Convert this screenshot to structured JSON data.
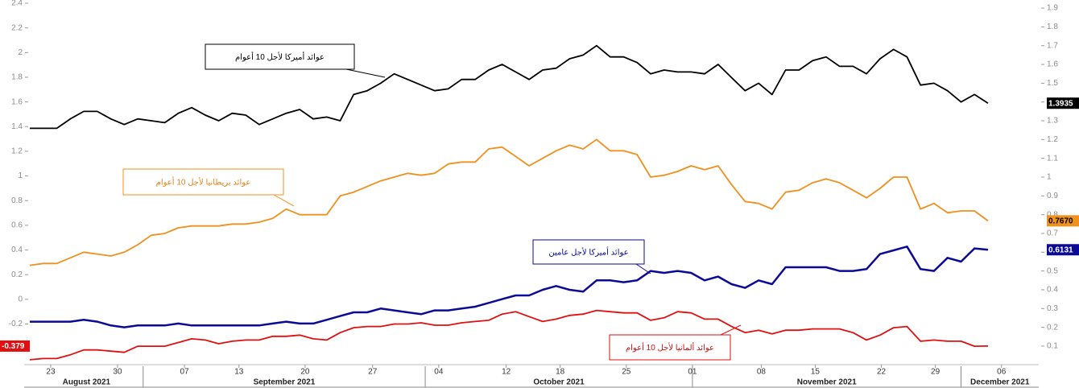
{
  "chart_data": {
    "type": "line",
    "x": [
      -1,
      0,
      1,
      2,
      3,
      4,
      5,
      6,
      7,
      8,
      9,
      10,
      11,
      12,
      13,
      14,
      15,
      16,
      17,
      18,
      19,
      20,
      21,
      22,
      23,
      24,
      25,
      26,
      27,
      28,
      29,
      30,
      31,
      32,
      33,
      34,
      35,
      36,
      37,
      38,
      39,
      40,
      41,
      42,
      43,
      44,
      45,
      46,
      47,
      48,
      49,
      50,
      51,
      52,
      53,
      54,
      55,
      56,
      57,
      58,
      59,
      60,
      61,
      62,
      63,
      64,
      65,
      66,
      67,
      68,
      69,
      70
    ],
    "series": [
      {
        "name": "عوائد أميركا لأجل 10 أعوام",
        "color": "#000000",
        "axis": "y2",
        "end_label": "1.3935",
        "values": [
          1.26,
          1.26,
          1.26,
          1.31,
          1.35,
          1.35,
          1.31,
          1.28,
          1.31,
          1.3,
          1.29,
          1.34,
          1.37,
          1.33,
          1.3,
          1.34,
          1.33,
          1.28,
          1.31,
          1.34,
          1.36,
          1.31,
          1.32,
          1.3,
          1.44,
          1.46,
          1.5,
          1.55,
          1.52,
          1.49,
          1.46,
          1.47,
          1.52,
          1.52,
          1.57,
          1.6,
          1.56,
          1.52,
          1.57,
          1.58,
          1.63,
          1.65,
          1.7,
          1.64,
          1.64,
          1.61,
          1.55,
          1.57,
          1.56,
          1.56,
          1.55,
          1.6,
          1.53,
          1.46,
          1.5,
          1.44,
          1.57,
          1.57,
          1.62,
          1.64,
          1.59,
          1.59,
          1.55,
          1.63,
          1.68,
          1.64,
          1.49,
          1.5,
          1.46,
          1.4,
          1.44,
          1.3935
        ]
      },
      {
        "name": "عوائد بريطانيا لأجل 10 أعوام",
        "color": "#f0901e",
        "axis": "y2",
        "end_label": "0.7670",
        "values": [
          0.53,
          0.54,
          0.54,
          0.57,
          0.6,
          0.59,
          0.58,
          0.6,
          0.64,
          0.69,
          0.7,
          0.73,
          0.74,
          0.74,
          0.74,
          0.75,
          0.75,
          0.76,
          0.78,
          0.83,
          0.8,
          0.8,
          0.8,
          0.9,
          0.92,
          0.95,
          0.98,
          1.0,
          1.02,
          1.01,
          1.02,
          1.07,
          1.08,
          1.08,
          1.15,
          1.16,
          1.11,
          1.06,
          1.1,
          1.14,
          1.17,
          1.15,
          1.2,
          1.14,
          1.14,
          1.12,
          1.0,
          1.01,
          1.03,
          1.06,
          1.04,
          1.06,
          0.96,
          0.87,
          0.86,
          0.83,
          0.92,
          0.93,
          0.97,
          0.99,
          0.97,
          0.93,
          0.89,
          0.94,
          1.0,
          1.0,
          0.83,
          0.86,
          0.81,
          0.82,
          0.82,
          0.767
        ]
      },
      {
        "name": "عوائد أميركا لأجل عامين",
        "color": "#0a0a96",
        "axis": "y2",
        "end_label": "0.6131",
        "values": [
          0.23,
          0.23,
          0.23,
          0.23,
          0.24,
          0.23,
          0.21,
          0.2,
          0.21,
          0.21,
          0.21,
          0.22,
          0.21,
          0.21,
          0.21,
          0.21,
          0.21,
          0.21,
          0.22,
          0.23,
          0.22,
          0.22,
          0.24,
          0.26,
          0.28,
          0.28,
          0.3,
          0.29,
          0.28,
          0.27,
          0.29,
          0.29,
          0.3,
          0.31,
          0.33,
          0.35,
          0.37,
          0.37,
          0.4,
          0.42,
          0.4,
          0.39,
          0.45,
          0.45,
          0.44,
          0.45,
          0.5,
          0.49,
          0.5,
          0.49,
          0.45,
          0.47,
          0.43,
          0.41,
          0.45,
          0.43,
          0.52,
          0.52,
          0.52,
          0.52,
          0.5,
          0.5,
          0.51,
          0.59,
          0.61,
          0.63,
          0.51,
          0.5,
          0.57,
          0.55,
          0.62,
          0.6131
        ]
      },
      {
        "name": "عوائد ألمانيا لأجل 10 أعوام",
        "color": "#e01010",
        "axis": "y",
        "end_label": "-0.379",
        "values": [
          -0.49,
          -0.48,
          -0.48,
          -0.45,
          -0.41,
          -0.41,
          -0.42,
          -0.43,
          -0.38,
          -0.38,
          -0.38,
          -0.35,
          -0.32,
          -0.33,
          -0.36,
          -0.34,
          -0.33,
          -0.33,
          -0.3,
          -0.3,
          -0.29,
          -0.32,
          -0.33,
          -0.27,
          -0.23,
          -0.22,
          -0.22,
          -0.2,
          -0.2,
          -0.19,
          -0.21,
          -0.21,
          -0.19,
          -0.18,
          -0.17,
          -0.12,
          -0.1,
          -0.14,
          -0.18,
          -0.16,
          -0.13,
          -0.12,
          -0.09,
          -0.1,
          -0.11,
          -0.11,
          -0.17,
          -0.15,
          -0.1,
          -0.11,
          -0.16,
          -0.16,
          -0.22,
          -0.27,
          -0.25,
          -0.28,
          -0.25,
          -0.25,
          -0.24,
          -0.24,
          -0.24,
          -0.27,
          -0.33,
          -0.29,
          -0.23,
          -0.22,
          -0.34,
          -0.33,
          -0.34,
          -0.34,
          -0.38,
          -0.379
        ]
      }
    ],
    "xlim": [
      -1,
      73.76
    ],
    "xticks": [
      {
        "value": 0.55,
        "label": "23"
      },
      {
        "value": 5.5,
        "label": "30"
      },
      {
        "value": 10.46,
        "label": "07"
      },
      {
        "value": 14.5,
        "label": "13"
      },
      {
        "value": 19.4,
        "label": "20"
      },
      {
        "value": 24.4,
        "label": "27"
      },
      {
        "value": 29.3,
        "label": "04"
      },
      {
        "value": 34.3,
        "label": "12"
      },
      {
        "value": 38.3,
        "label": "18"
      },
      {
        "value": 43.2,
        "label": "25"
      },
      {
        "value": 48.1,
        "label": "01"
      },
      {
        "value": 53.2,
        "label": "08"
      },
      {
        "value": 57.2,
        "label": "15"
      },
      {
        "value": 62.1,
        "label": "22"
      },
      {
        "value": 66.1,
        "label": "29"
      },
      {
        "value": 71.0,
        "label": "06"
      }
    ],
    "months": [
      "August 2021",
      "September 2021",
      "October 2021",
      "November 2021",
      "December 2021"
    ],
    "month_breaks": [
      7.4,
      28.3,
      48.1,
      68.0
    ],
    "ylim": [
      -0.51,
      2.4
    ],
    "yticks": [
      -0.2,
      0,
      0.2,
      0.4,
      0.6,
      0.8,
      1,
      1.2,
      1.4,
      1.6,
      1.8,
      2,
      2.2,
      2.4
    ],
    "y2lim": [
      0.014,
      1.926
    ],
    "y2ticks": [
      0.1,
      0.2,
      0.3,
      0.4,
      0.5,
      0.6,
      0.7,
      0.8,
      0.9,
      1,
      1.1,
      1.2,
      1.3,
      1.4,
      1.5,
      1.6,
      1.7,
      1.8,
      1.9
    ]
  }
}
